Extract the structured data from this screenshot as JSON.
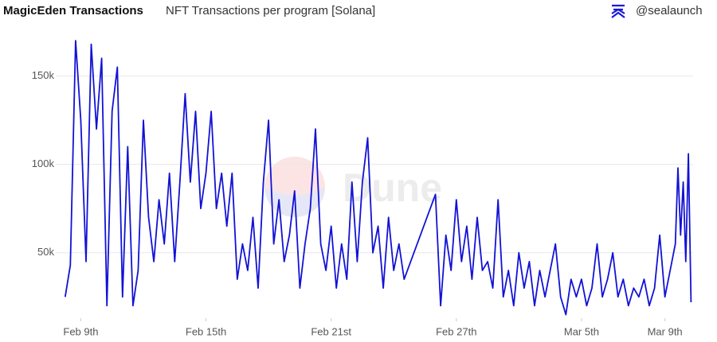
{
  "header": {
    "title": "MagicEden Transactions",
    "subtitle": "NFT Transactions per program [Solana]",
    "handle": "@sealaunch"
  },
  "watermark": "Dune",
  "chart_data": {
    "type": "line",
    "color": "#1212d6",
    "grid": true,
    "x": [
      8.25,
      8.5,
      8.75,
      9,
      9.25,
      9.5,
      9.75,
      10,
      10.25,
      10.5,
      10.75,
      11,
      11.25,
      11.5,
      11.75,
      12,
      12.25,
      12.5,
      12.75,
      13,
      13.25,
      13.5,
      13.75,
      14,
      14.25,
      14.5,
      14.75,
      15,
      15.25,
      15.5,
      15.75,
      16,
      16.25,
      16.5,
      16.75,
      17,
      17.25,
      17.5,
      17.75,
      18,
      18.25,
      18.5,
      18.75,
      19,
      19.25,
      19.5,
      19.75,
      20,
      20.25,
      20.5,
      20.75,
      21,
      21.25,
      21.5,
      21.75,
      22,
      22.25,
      22.5,
      22.75,
      23,
      23.25,
      23.5,
      23.75,
      24,
      24.25,
      24.5,
      26,
      26.25,
      26.5,
      26.75,
      27,
      27.25,
      27.5,
      27.75,
      28,
      28.25,
      28.5,
      28.75,
      29,
      29.25,
      29.5,
      29.75,
      30,
      30.25,
      30.5,
      30.75,
      31,
      31.25,
      31.5,
      31.75,
      32,
      32.25,
      32.5,
      32.75,
      33,
      33.25,
      33.5,
      33.75,
      34,
      34.25,
      34.5,
      34.75,
      35,
      35.25,
      35.5,
      35.75,
      36,
      36.25,
      36.5,
      36.75,
      37,
      37.25,
      37.5,
      37.625,
      37.75,
      37.875,
      38,
      38.125,
      38.25
    ],
    "values": [
      25000,
      43000,
      170000,
      125000,
      45000,
      168000,
      120000,
      160000,
      20000,
      130000,
      155000,
      25000,
      110000,
      20000,
      40000,
      125000,
      70000,
      45000,
      80000,
      55000,
      95000,
      45000,
      90000,
      140000,
      90000,
      130000,
      75000,
      95000,
      130000,
      75000,
      95000,
      65000,
      95000,
      35000,
      55000,
      40000,
      70000,
      30000,
      90000,
      125000,
      55000,
      80000,
      45000,
      60000,
      85000,
      30000,
      55000,
      75000,
      120000,
      55000,
      40000,
      65000,
      30000,
      55000,
      35000,
      90000,
      45000,
      90000,
      115000,
      50000,
      65000,
      30000,
      70000,
      40000,
      55000,
      35000,
      83000,
      20000,
      60000,
      40000,
      80000,
      45000,
      65000,
      35000,
      70000,
      40000,
      45000,
      30000,
      80000,
      25000,
      40000,
      20000,
      50000,
      30000,
      45000,
      20000,
      40000,
      25000,
      40000,
      55000,
      25000,
      15000,
      35000,
      25000,
      35000,
      20000,
      30000,
      55000,
      25000,
      35000,
      50000,
      25000,
      35000,
      20000,
      30000,
      25000,
      35000,
      20000,
      30000,
      60000,
      25000,
      40000,
      55000,
      98000,
      60000,
      90000,
      45000,
      106000,
      22000
    ],
    "xlim": [
      7.8,
      38.35
    ],
    "xticks": [
      {
        "value": 9,
        "label": "Feb 9th"
      },
      {
        "value": 15,
        "label": "Feb 15th"
      },
      {
        "value": 21,
        "label": "Feb 21st"
      },
      {
        "value": 27,
        "label": "Feb 27th"
      },
      {
        "value": 33,
        "label": "Mar 5th"
      },
      {
        "value": 37,
        "label": "Mar 9th"
      }
    ],
    "ylim": [
      13000,
      175000
    ],
    "yticks": [
      {
        "value": 50000,
        "label": "50k"
      },
      {
        "value": 100000,
        "label": "100k"
      },
      {
        "value": 150000,
        "label": "150k"
      }
    ]
  }
}
